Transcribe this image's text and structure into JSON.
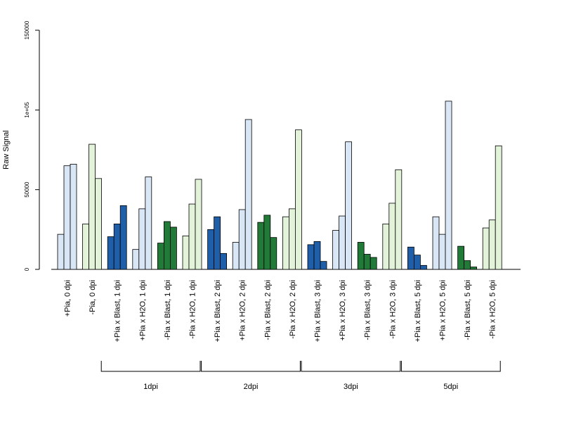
{
  "chart_data": {
    "type": "bar",
    "title": "",
    "xlabel": "",
    "ylabel": "Raw Signal",
    "ylim": [
      0,
      150000
    ],
    "yticks": [
      0,
      50000,
      100000,
      150000
    ],
    "ytick_labels": [
      "0",
      "50000",
      "1e+05",
      "150000"
    ],
    "grid": false,
    "legend": "none",
    "categories": [
      "+Pia, 0 dpi",
      "-Pia, 0 dpi",
      "+Pia x Blast, 1 dpi",
      "+Pia x H2O, 1 dpi",
      "-Pia x Blast, 1 dpi",
      "-Pia x H2O, 1 dpi",
      "+Pia x Blast, 2 dpi",
      "+Pia x H2O, 2 dpi",
      "-Pia x Blast, 2 dpi",
      "-Pia x H2O, 2 dpi",
      "+Pia x Blast, 3 dpi",
      "+Pia x H2O, 3 dpi",
      "-Pia x Blast, 3 dpi",
      "-Pia x H2O, 3 dpi",
      "+Pia x Blast, 5 dpi",
      "+Pia x H2O, 5 dpi",
      "-Pia x Blast, 5 dpi",
      "-Pia x H2O, 5 dpi"
    ],
    "series": [
      {
        "values": [
          22000,
          28500,
          20500,
          12500,
          16500,
          21000,
          25000,
          17000,
          29500,
          33000,
          15500,
          24500,
          17000,
          28500,
          14000,
          33000,
          14500,
          26000
        ]
      },
      {
        "values": [
          65000,
          78500,
          28500,
          38000,
          30000,
          41000,
          33000,
          37500,
          34000,
          38000,
          17500,
          33500,
          9500,
          41500,
          9000,
          22000,
          5500,
          31000
        ]
      },
      {
        "values": [
          66000,
          57000,
          40000,
          58000,
          26500,
          56500,
          10000,
          94000,
          20000,
          87500,
          5000,
          80000,
          7500,
          62500,
          2500,
          105500,
          1500,
          77500
        ]
      }
    ],
    "bar_colors": [
      "#d8e6f5",
      "#e2f3da",
      "#1f5ea8",
      "#d8e6f5",
      "#217a38",
      "#e2f3da",
      "#1f5ea8",
      "#d8e6f5",
      "#217a38",
      "#e2f3da",
      "#1f5ea8",
      "#d8e6f5",
      "#217a38",
      "#e2f3da",
      "#1f5ea8",
      "#d8e6f5",
      "#217a38",
      "#e2f3da"
    ],
    "groups": [
      {
        "label": "1dpi",
        "first": 2,
        "last": 5
      },
      {
        "label": "2dpi",
        "first": 6,
        "last": 9
      },
      {
        "label": "3dpi",
        "first": 10,
        "last": 13
      },
      {
        "label": "5dpi",
        "first": 14,
        "last": 17
      }
    ]
  }
}
